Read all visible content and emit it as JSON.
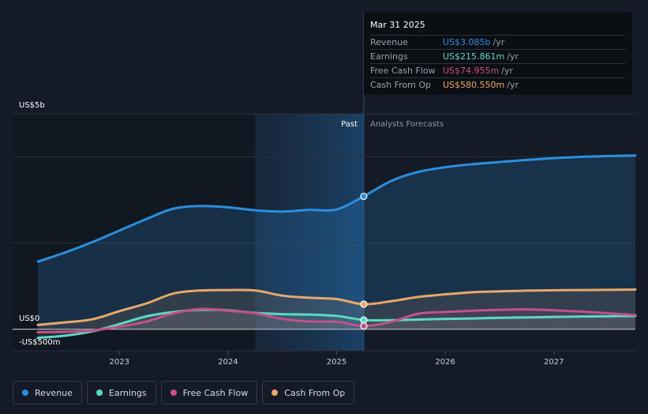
{
  "chart_data": {
    "type": "area",
    "y_unit_label_top": "US$5b",
    "y_zero_label": "US$0",
    "y_bottom_label": "-US$500m",
    "ylim": [
      -500,
      5000
    ],
    "xlim": [
      2022.25,
      2027.75
    ],
    "x_ticks": [
      "2023",
      "2024",
      "2025",
      "2026",
      "2027"
    ],
    "x_tick_values": [
      2023,
      2024,
      2025,
      2026,
      2027
    ],
    "past_label": "Past",
    "forecast_label": "Analysts Forecasts",
    "highlight_start": 2024.25,
    "divider_x": 2025.25,
    "series": [
      {
        "name": "Revenue",
        "color": "#2b8fe0",
        "points": [
          [
            2022.25,
            1570
          ],
          [
            2022.5,
            1780
          ],
          [
            2022.75,
            2020
          ],
          [
            2023.0,
            2290
          ],
          [
            2023.25,
            2560
          ],
          [
            2023.5,
            2800
          ],
          [
            2023.75,
            2860
          ],
          [
            2024.0,
            2830
          ],
          [
            2024.25,
            2760
          ],
          [
            2024.5,
            2730
          ],
          [
            2024.75,
            2770
          ],
          [
            2025.0,
            2780
          ],
          [
            2025.25,
            3085
          ],
          [
            2025.5,
            3440
          ],
          [
            2025.75,
            3650
          ],
          [
            2026.0,
            3760
          ],
          [
            2026.25,
            3830
          ],
          [
            2026.5,
            3880
          ],
          [
            2026.75,
            3930
          ],
          [
            2027.0,
            3970
          ],
          [
            2027.25,
            4000
          ],
          [
            2027.5,
            4020
          ],
          [
            2027.75,
            4030
          ]
        ]
      },
      {
        "name": "Earnings",
        "color": "#5ed7c4",
        "points": [
          [
            2022.25,
            -200
          ],
          [
            2022.5,
            -150
          ],
          [
            2022.75,
            -50
          ],
          [
            2023.0,
            120
          ],
          [
            2023.25,
            300
          ],
          [
            2023.5,
            400
          ],
          [
            2023.75,
            450
          ],
          [
            2024.0,
            440
          ],
          [
            2024.25,
            380
          ],
          [
            2024.5,
            350
          ],
          [
            2024.75,
            340
          ],
          [
            2025.0,
            310
          ],
          [
            2025.25,
            216
          ],
          [
            2025.5,
            210
          ],
          [
            2025.75,
            225
          ],
          [
            2026.0,
            240
          ],
          [
            2026.25,
            250
          ],
          [
            2026.5,
            265
          ],
          [
            2026.75,
            275
          ],
          [
            2027.0,
            285
          ],
          [
            2027.25,
            295
          ],
          [
            2027.5,
            300
          ],
          [
            2027.75,
            310
          ]
        ]
      },
      {
        "name": "Free Cash Flow",
        "color": "#c4508a",
        "points": [
          [
            2022.25,
            -70
          ],
          [
            2022.5,
            -60
          ],
          [
            2022.75,
            -30
          ],
          [
            2023.0,
            60
          ],
          [
            2023.25,
            180
          ],
          [
            2023.5,
            370
          ],
          [
            2023.75,
            470
          ],
          [
            2024.0,
            430
          ],
          [
            2024.25,
            370
          ],
          [
            2024.5,
            240
          ],
          [
            2024.75,
            180
          ],
          [
            2025.0,
            175
          ],
          [
            2025.25,
            75
          ],
          [
            2025.5,
            170
          ],
          [
            2025.75,
            360
          ],
          [
            2026.0,
            400
          ],
          [
            2026.25,
            430
          ],
          [
            2026.5,
            450
          ],
          [
            2026.75,
            460
          ],
          [
            2027.0,
            440
          ],
          [
            2027.25,
            410
          ],
          [
            2027.5,
            370
          ],
          [
            2027.75,
            330
          ]
        ]
      },
      {
        "name": "Cash From Op",
        "color": "#e8a86a",
        "points": [
          [
            2022.25,
            100
          ],
          [
            2022.5,
            160
          ],
          [
            2022.75,
            230
          ],
          [
            2023.0,
            420
          ],
          [
            2023.25,
            600
          ],
          [
            2023.5,
            830
          ],
          [
            2023.75,
            900
          ],
          [
            2024.0,
            910
          ],
          [
            2024.25,
            900
          ],
          [
            2024.5,
            780
          ],
          [
            2024.75,
            730
          ],
          [
            2025.0,
            700
          ],
          [
            2025.25,
            581
          ],
          [
            2025.5,
            650
          ],
          [
            2025.75,
            750
          ],
          [
            2026.0,
            810
          ],
          [
            2026.25,
            860
          ],
          [
            2026.5,
            880
          ],
          [
            2026.75,
            895
          ],
          [
            2027.0,
            905
          ],
          [
            2027.25,
            910
          ],
          [
            2027.5,
            915
          ],
          [
            2027.75,
            920
          ]
        ]
      }
    ],
    "markers": [
      {
        "series": "Revenue",
        "x": 2025.25,
        "y": 3085
      },
      {
        "series": "Cash From Op",
        "x": 2025.25,
        "y": 581
      },
      {
        "series": "Earnings",
        "x": 2025.25,
        "y": 216
      },
      {
        "series": "Free Cash Flow",
        "x": 2025.25,
        "y": 75
      }
    ]
  },
  "tooltip": {
    "date": "Mar 31 2025",
    "rows": [
      {
        "label": "Revenue",
        "value": "US$3.085b",
        "unit": "/yr",
        "color": "#2b8fe0"
      },
      {
        "label": "Earnings",
        "value": "US$215.861m",
        "unit": "/yr",
        "color": "#5ed7c4"
      },
      {
        "label": "Free Cash Flow",
        "value": "US$74.955m",
        "unit": "/yr",
        "color": "#c4508a"
      },
      {
        "label": "Cash From Op",
        "value": "US$580.550m",
        "unit": "/yr",
        "color": "#e8a86a"
      }
    ]
  },
  "legend": [
    {
      "label": "Revenue",
      "color": "#2b8fe0"
    },
    {
      "label": "Earnings",
      "color": "#5ed7c4"
    },
    {
      "label": "Free Cash Flow",
      "color": "#c4508a"
    },
    {
      "label": "Cash From Op",
      "color": "#e8a86a"
    }
  ]
}
